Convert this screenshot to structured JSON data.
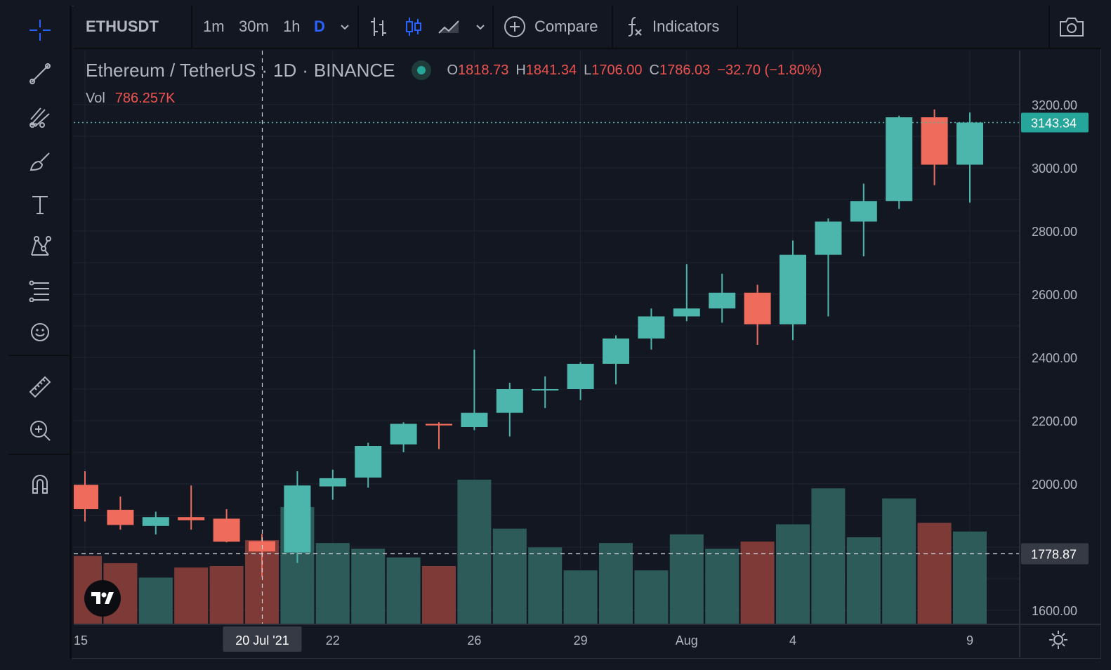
{
  "toolbar": {
    "symbol": "ETHUSDT",
    "intervals": [
      "1m",
      "30m",
      "1h",
      "D"
    ],
    "active_interval": "D",
    "compare_label": "Compare",
    "indicators_label": "Indicators"
  },
  "legend": {
    "title_pair": "Ethereum / TetherUS",
    "title_interval": "1D",
    "title_exchange": "BINANCE",
    "ohlc": {
      "o_key": "O",
      "o": "1818.73",
      "h_key": "H",
      "h": "1841.34",
      "l_key": "L",
      "l": "1706.00",
      "c_key": "C",
      "c": "1786.03",
      "change": "−32.70 (−1.80%)"
    },
    "vol_label": "Vol",
    "vol_value": "786.257K"
  },
  "colors": {
    "up": "#4db6ac",
    "down": "#ef6b5b",
    "up_vol": "#2d5b59",
    "down_vol": "#7e3a36",
    "bg": "#131722",
    "grid": "#1f2330",
    "text": "#b2b5be"
  },
  "chart_data": {
    "type": "candlestick",
    "title": "Ethereum / TetherUS · 1D · BINANCE",
    "ylim": [
      1580,
      3240
    ],
    "y_ticks": [
      1600,
      2000,
      2200,
      2400,
      2600,
      2800,
      3000,
      3200
    ],
    "y_tick_labels": [
      "1600.00",
      "2000.00",
      "2200.00",
      "2400.00",
      "2600.00",
      "2800.00",
      "3000.00",
      "3200.00"
    ],
    "x_tick_labels": [
      {
        "text": "15",
        "index": 0
      },
      {
        "text": "22",
        "index": 7
      },
      {
        "text": "26",
        "index": 11
      },
      {
        "text": "29",
        "index": 14
      },
      {
        "text": "Aug",
        "index": 17
      },
      {
        "text": "4",
        "index": 20
      },
      {
        "text": "9",
        "index": 25
      }
    ],
    "crosshair": {
      "index": 5,
      "price_label": "1778.87",
      "date_label": "20 Jul '21",
      "price": 1778.87
    },
    "last_price": {
      "value": 3143.34,
      "label": "3143.34"
    },
    "candles": [
      {
        "o": 1997,
        "h": 2040,
        "l": 1881,
        "c": 1920
      },
      {
        "o": 1918,
        "h": 1960,
        "l": 1855,
        "c": 1870
      },
      {
        "o": 1867,
        "h": 1912,
        "l": 1840,
        "c": 1895
      },
      {
        "o": 1895,
        "h": 1995,
        "l": 1855,
        "c": 1885
      },
      {
        "o": 1890,
        "h": 1920,
        "l": 1815,
        "c": 1817
      },
      {
        "o": 1818.73,
        "h": 1841.34,
        "l": 1706.0,
        "c": 1786.03
      },
      {
        "o": 1783,
        "h": 2040,
        "l": 1750,
        "c": 1995
      },
      {
        "o": 1992,
        "h": 2045,
        "l": 1950,
        "c": 2018
      },
      {
        "o": 2020,
        "h": 2130,
        "l": 1988,
        "c": 2120
      },
      {
        "o": 2125,
        "h": 2195,
        "l": 2100,
        "c": 2190
      },
      {
        "o": 2190,
        "h": 2195,
        "l": 2110,
        "c": 2185
      },
      {
        "o": 2180,
        "h": 2425,
        "l": 2170,
        "c": 2225
      },
      {
        "o": 2225,
        "h": 2320,
        "l": 2150,
        "c": 2300
      },
      {
        "o": 2298,
        "h": 2340,
        "l": 2240,
        "c": 2300
      },
      {
        "o": 2300,
        "h": 2385,
        "l": 2265,
        "c": 2380
      },
      {
        "o": 2380,
        "h": 2470,
        "l": 2315,
        "c": 2460
      },
      {
        "o": 2460,
        "h": 2555,
        "l": 2425,
        "c": 2530
      },
      {
        "o": 2530,
        "h": 2695,
        "l": 2515,
        "c": 2555
      },
      {
        "o": 2555,
        "h": 2665,
        "l": 2510,
        "c": 2605
      },
      {
        "o": 2605,
        "h": 2630,
        "l": 2440,
        "c": 2505
      },
      {
        "o": 2505,
        "h": 2770,
        "l": 2455,
        "c": 2725
      },
      {
        "o": 2725,
        "h": 2840,
        "l": 2530,
        "c": 2830
      },
      {
        "o": 2830,
        "h": 2950,
        "l": 2720,
        "c": 2895
      },
      {
        "o": 2895,
        "h": 3165,
        "l": 2870,
        "c": 3160
      },
      {
        "o": 3160,
        "h": 3185,
        "l": 2945,
        "c": 3010
      },
      {
        "o": 3010,
        "h": 3175,
        "l": 2890,
        "c": 3143.34
      }
    ],
    "volumes": [
      0.47,
      0.42,
      0.32,
      0.39,
      0.4,
      0.58,
      0.81,
      0.56,
      0.52,
      0.46,
      0.4,
      1.0,
      0.66,
      0.53,
      0.37,
      0.56,
      0.37,
      0.62,
      0.52,
      0.57,
      0.69,
      0.94,
      0.6,
      0.87,
      0.7,
      0.64
    ]
  }
}
